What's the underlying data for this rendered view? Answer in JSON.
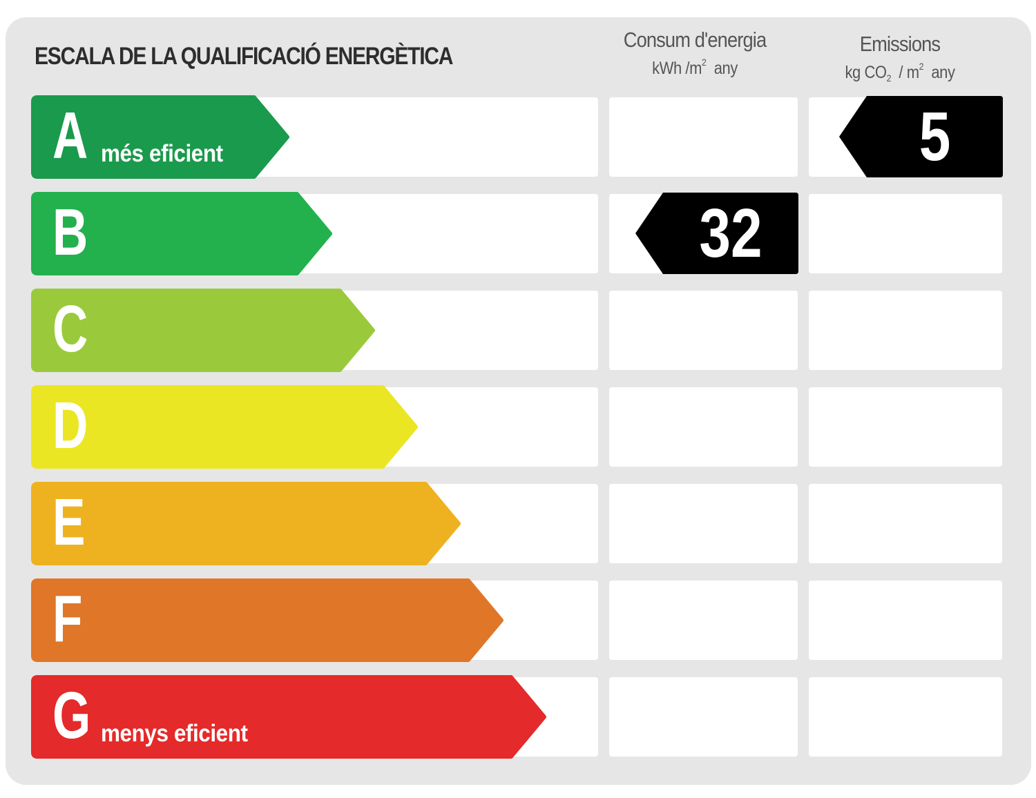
{
  "title": "ESCALA DE LA QUALIFICACIÓ ENERGÈTICA",
  "columns": {
    "energy": {
      "label": "Consum d'energia",
      "unit_prefix": "kWh /m",
      "unit_power": "2",
      "unit_suffix": "any"
    },
    "emissions": {
      "label": "Emissions",
      "unit_prefix": "kg CO",
      "unit_sub": "2",
      "unit_mid": "/ m",
      "unit_power": "2",
      "unit_suffix": "any"
    }
  },
  "grades": [
    {
      "letter": "A",
      "caption": "més eficient",
      "color": "#1a9a4c"
    },
    {
      "letter": "B",
      "caption": "",
      "color": "#22b14c"
    },
    {
      "letter": "C",
      "caption": "",
      "color": "#9aca3c"
    },
    {
      "letter": "D",
      "caption": "",
      "color": "#ebe624"
    },
    {
      "letter": "E",
      "caption": "",
      "color": "#eeb220"
    },
    {
      "letter": "F",
      "caption": "",
      "color": "#e07628"
    },
    {
      "letter": "G",
      "caption": "menys eficient",
      "color": "#e42a2a"
    }
  ],
  "rating": {
    "energy": {
      "value": "32",
      "grade": "B"
    },
    "emissions": {
      "value": "5",
      "grade": "A"
    }
  },
  "marker_color": "#000000"
}
